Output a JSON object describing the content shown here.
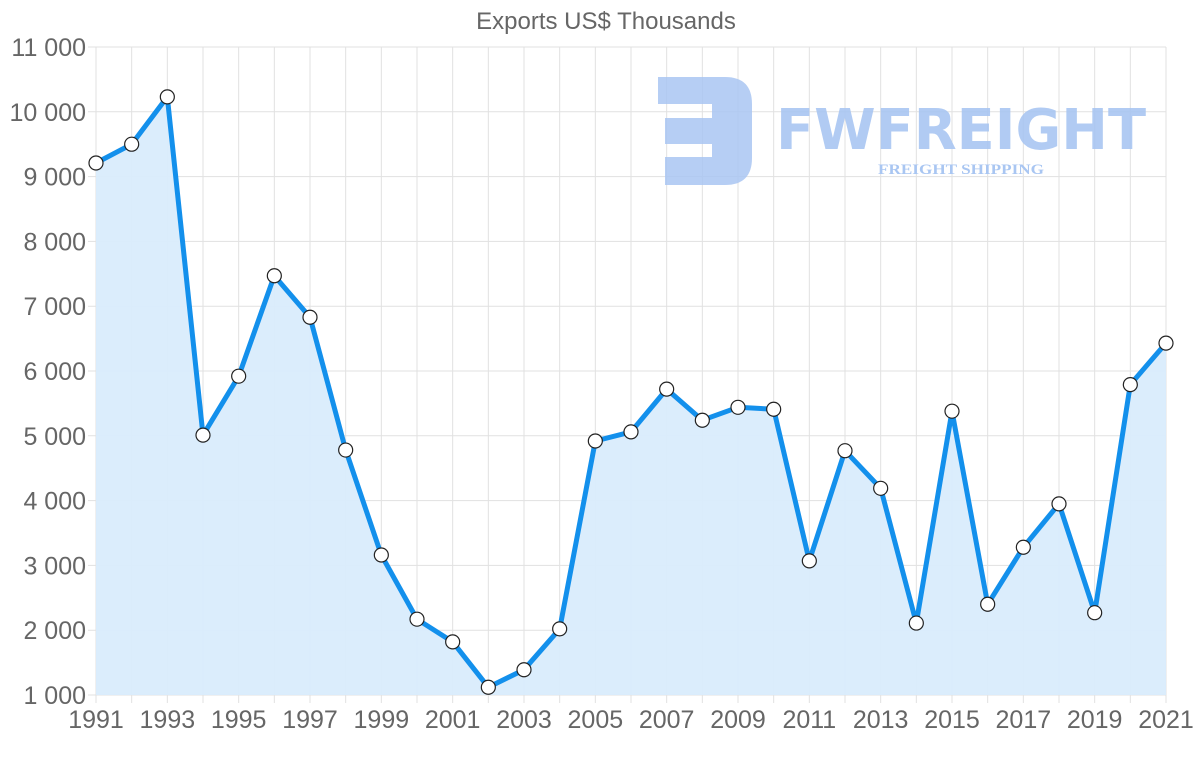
{
  "chart_data": {
    "type": "area",
    "title": "Exports US$ Thousands",
    "xlabel": "",
    "ylabel": "",
    "x": [
      1991,
      1992,
      1993,
      1994,
      1995,
      1996,
      1997,
      1998,
      1999,
      2000,
      2001,
      2002,
      2003,
      2004,
      2005,
      2006,
      2007,
      2008,
      2009,
      2010,
      2011,
      2012,
      2013,
      2014,
      2015,
      2016,
      2017,
      2018,
      2019,
      2020,
      2021
    ],
    "series": [
      {
        "name": "Exports US$ Thousands",
        "values": [
          9210,
          9500,
          10230,
          5010,
          5920,
          7470,
          6830,
          4780,
          3160,
          2170,
          1820,
          1120,
          1390,
          2020,
          4920,
          5060,
          5720,
          5240,
          5440,
          5410,
          3070,
          4770,
          4190,
          2110,
          5380,
          2400,
          3280,
          3950,
          2270,
          5790,
          6430
        ]
      }
    ],
    "ylim": [
      1000,
      11000
    ],
    "yticks": [
      "1 000",
      "2 000",
      "3 000",
      "4 000",
      "5 000",
      "6 000",
      "7 000",
      "8 000",
      "9 000",
      "10 000",
      "11 000"
    ],
    "xticks": [
      "1991",
      "1993",
      "1995",
      "1997",
      "1999",
      "2001",
      "2003",
      "2005",
      "2007",
      "2009",
      "2011",
      "2013",
      "2015",
      "2017",
      "2019",
      "2021"
    ],
    "grid": true,
    "legend": "none",
    "colors": {
      "line": "#1390ec",
      "fill": "#d9ecfc",
      "grid": "#e1e1e1",
      "point_fill": "#ffffff",
      "point_stroke": "#222222"
    }
  },
  "watermark": {
    "brand": "FWFREIGHT",
    "tagline": "FREIGHT SHIPPING",
    "color": "#a9c6f2"
  }
}
